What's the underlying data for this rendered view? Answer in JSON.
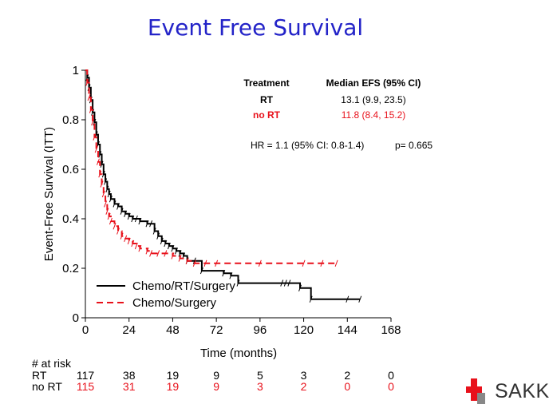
{
  "slide": {
    "title": "Event Free Survival"
  },
  "logo": {
    "text": "SAKK"
  },
  "chart_data": {
    "type": "line",
    "title": "",
    "xlabel": "Time (months)",
    "ylabel": "Event-Free Survival (ITT)",
    "xlim": [
      0,
      168
    ],
    "ylim": [
      0,
      1
    ],
    "x_ticks": [
      "0",
      "24",
      "48",
      "72",
      "96",
      "120",
      "144",
      "168"
    ],
    "y_ticks": [
      "0",
      "0.2",
      "0.4",
      "0.6",
      "0.8",
      "1"
    ],
    "grid": false,
    "legend_position": "bottom-left",
    "series": [
      {
        "name": "Chemo/RT/Surgery",
        "color": "#000000",
        "dash": "solid",
        "x": [
          0,
          1,
          2,
          3,
          4,
          5,
          6,
          7,
          8,
          9,
          10,
          11,
          12,
          13,
          14,
          16,
          18,
          20,
          22,
          24,
          26,
          28,
          30,
          34,
          36,
          38,
          40,
          42,
          44,
          46,
          48,
          50,
          52,
          54,
          56,
          60,
          64,
          76,
          80,
          84,
          108,
          110,
          112,
          118,
          124,
          144,
          151
        ],
        "y": [
          1,
          0.97,
          0.93,
          0.88,
          0.83,
          0.79,
          0.74,
          0.7,
          0.66,
          0.62,
          0.58,
          0.55,
          0.52,
          0.5,
          0.48,
          0.46,
          0.45,
          0.43,
          0.42,
          0.41,
          0.4,
          0.4,
          0.39,
          0.38,
          0.38,
          0.35,
          0.33,
          0.31,
          0.3,
          0.29,
          0.28,
          0.27,
          0.26,
          0.25,
          0.23,
          0.23,
          0.19,
          0.18,
          0.17,
          0.14,
          0.14,
          0.14,
          0.14,
          0.12,
          0.075,
          0.075,
          0.075
        ]
      },
      {
        "name": "Chemo/Surgery",
        "color": "#e8111b",
        "dash": "dashed",
        "x": [
          0,
          1,
          2,
          3,
          4,
          5,
          6,
          7,
          8,
          9,
          10,
          11,
          12,
          13,
          14,
          16,
          18,
          20,
          22,
          24,
          26,
          28,
          30,
          34,
          36,
          40,
          44,
          48,
          52,
          56,
          60,
          66,
          72,
          96,
          120,
          130,
          138
        ],
        "y": [
          1,
          0.95,
          0.89,
          0.84,
          0.79,
          0.73,
          0.68,
          0.63,
          0.58,
          0.54,
          0.5,
          0.46,
          0.43,
          0.41,
          0.39,
          0.37,
          0.35,
          0.33,
          0.32,
          0.31,
          0.3,
          0.29,
          0.28,
          0.27,
          0.26,
          0.26,
          0.26,
          0.25,
          0.24,
          0.23,
          0.22,
          0.22,
          0.22,
          0.22,
          0.22,
          0.22,
          0.22
        ]
      }
    ],
    "annotation": {
      "header_treatment": "Treatment",
      "header_median": "Median EFS (95% CI)",
      "rows": [
        {
          "label": "RT",
          "value": "13.1 (9.9, 23.5)",
          "color": "#000000"
        },
        {
          "label": "no RT",
          "value": "11.8 (8.4, 15.2)",
          "color": "#e8111b"
        }
      ],
      "hr_text": "HR = 1.1 (95% CI: 0.8-1.4)",
      "p_text": "p= 0.665"
    },
    "at_risk": {
      "title": "# at risk",
      "rows": [
        {
          "label": "RT",
          "color": "#000000",
          "values": [
            "117",
            "38",
            "19",
            "9",
            "5",
            "3",
            "2",
            "0"
          ]
        },
        {
          "label": "no RT",
          "color": "#e8111b",
          "values": [
            "115",
            "31",
            "19",
            "9",
            "3",
            "2",
            "0",
            "0"
          ]
        }
      ]
    }
  }
}
